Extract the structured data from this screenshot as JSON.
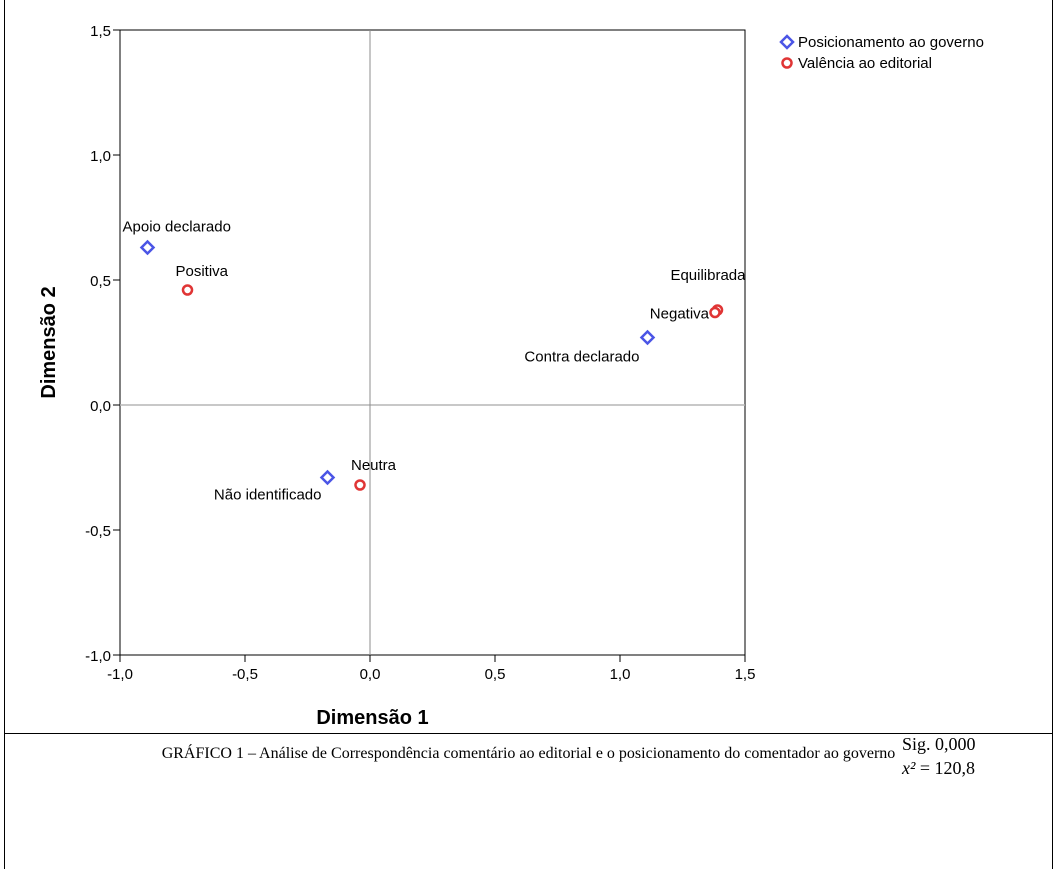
{
  "chart_data": {
    "type": "scatter",
    "title": "",
    "xlabel": "Dimensão 1",
    "ylabel": "Dimensão 2",
    "xlim": [
      -1.0,
      1.5
    ],
    "ylim": [
      -1.0,
      1.5
    ],
    "xticks": [
      -1.0,
      -0.5,
      0.0,
      0.5,
      1.0,
      1.5
    ],
    "yticks": [
      -1.0,
      -0.5,
      0.0,
      0.5,
      1.0,
      1.5
    ],
    "xtick_labels": [
      "-1,0",
      "-0,5",
      "0,0",
      "0,5",
      "1,0",
      "1,5"
    ],
    "ytick_labels": [
      "-1,0",
      "-0,5",
      "0,0",
      "0,5",
      "1,0",
      "1,5"
    ],
    "reference_lines": {
      "x": 0,
      "y": 0
    },
    "legend_position": "top-right",
    "series": [
      {
        "name": "Posicionamento ao governo",
        "marker": "diamond",
        "color": "#4b55e6",
        "points": [
          {
            "label": "Apoio declarado",
            "x": -0.89,
            "y": 0.63
          },
          {
            "label": "Contra declarado",
            "x": 1.11,
            "y": 0.27
          },
          {
            "label": "Não identificado",
            "x": -0.17,
            "y": -0.29
          }
        ]
      },
      {
        "name": "Valência ao editorial",
        "marker": "circle",
        "color": "#e03535",
        "points": [
          {
            "label": "Positiva",
            "x": -0.73,
            "y": 0.46
          },
          {
            "label": "Equilibrada",
            "x": 1.39,
            "y": 0.38
          },
          {
            "label": "Negativa",
            "x": 1.38,
            "y": 0.37
          },
          {
            "label": "Neutra",
            "x": -0.04,
            "y": -0.32
          }
        ]
      }
    ]
  },
  "stats": {
    "sig": "Sig. 0,000",
    "chi_symbol": "x²",
    "chi_value": " = 120,8"
  },
  "caption": "GRÁFICO 1 – Análise de Correspondência comentário ao editorial e o posicionamento do comentador ao governo"
}
